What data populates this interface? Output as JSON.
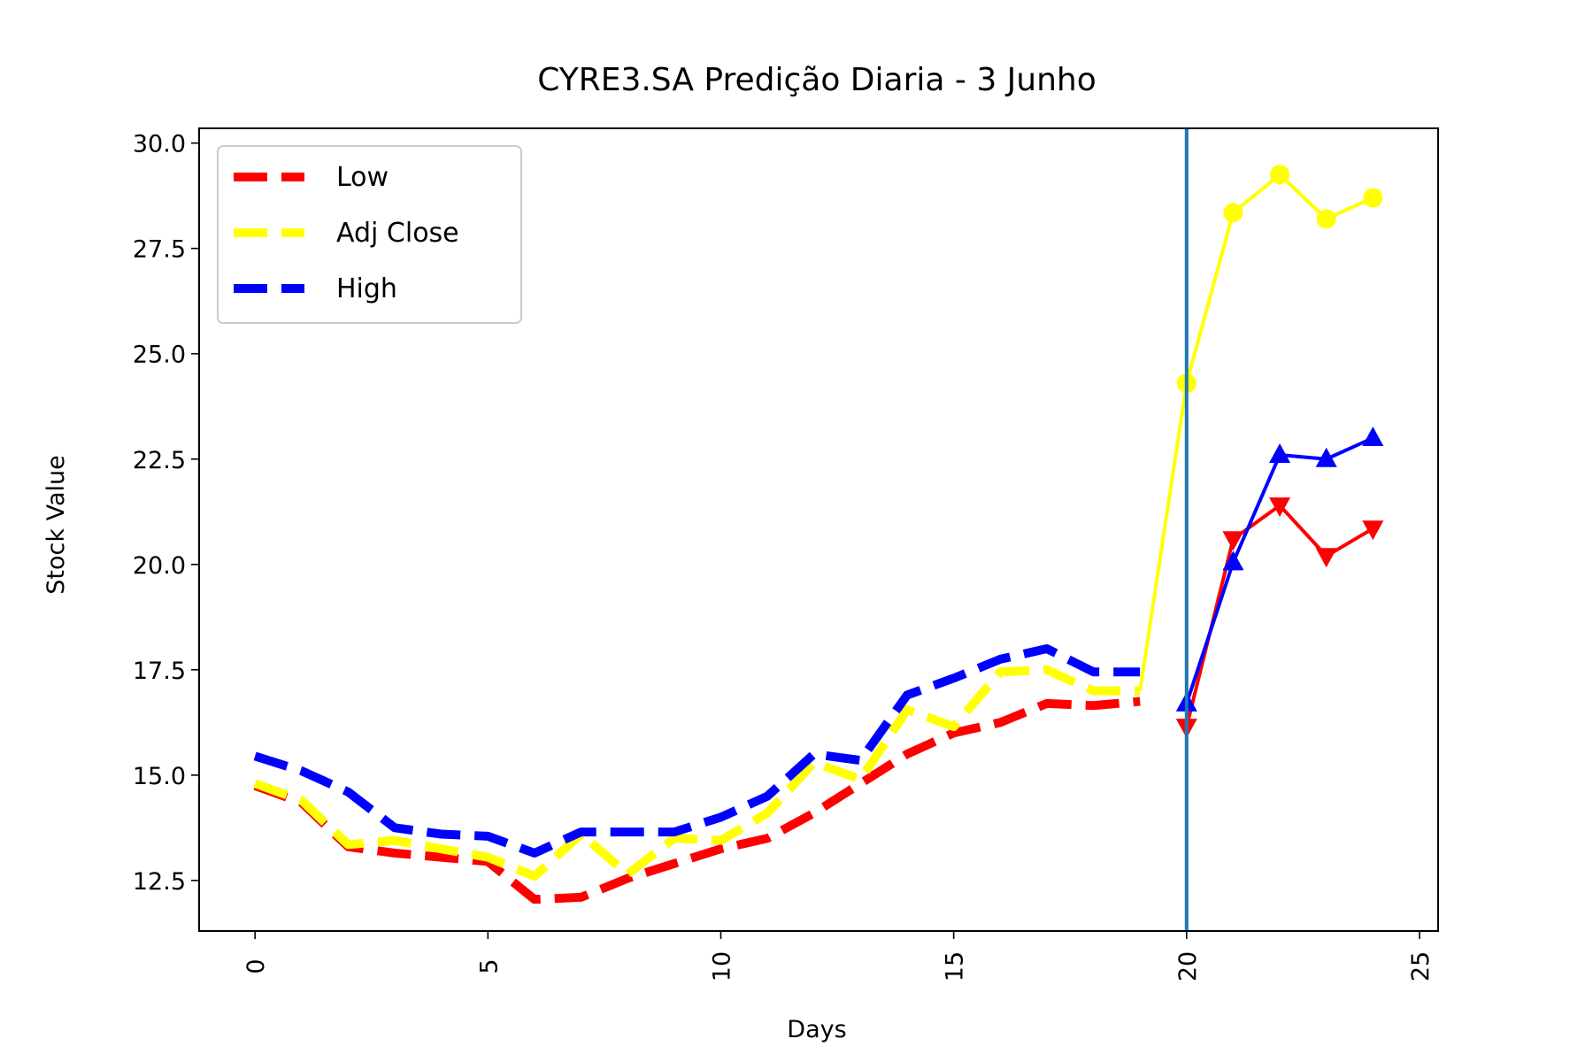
{
  "chart_data": {
    "type": "line",
    "title": "CYRE3.SA Predição Diaria - 3 Junho",
    "xlabel": "Days",
    "ylabel": "Stock Value",
    "xlim": [
      -1.2,
      25.4
    ],
    "ylim": [
      11.3,
      30.35
    ],
    "xticks": [
      0,
      5,
      10,
      15,
      20,
      25
    ],
    "xtick_labels": [
      "0",
      "5",
      "10",
      "15",
      "20",
      "25"
    ],
    "yticks": [
      12.5,
      15.0,
      17.5,
      20.0,
      22.5,
      25.0,
      27.5,
      30.0
    ],
    "ytick_labels": [
      "12.5",
      "15.0",
      "17.5",
      "20.0",
      "22.5",
      "25.0",
      "27.5",
      "30.0"
    ],
    "grid": false,
    "legend_position": "top-left",
    "vline": {
      "x": 20,
      "color": "#1f77b4"
    },
    "series": [
      {
        "name": "Low",
        "color": "#ff0000",
        "historical": {
          "x": [
            0,
            1,
            2,
            3,
            4,
            5,
            6,
            7,
            8,
            9,
            10,
            11,
            12,
            13,
            14,
            15,
            16,
            17,
            18,
            19
          ],
          "y": [
            14.75,
            14.35,
            13.3,
            13.15,
            13.05,
            12.95,
            12.05,
            12.1,
            12.55,
            12.9,
            13.25,
            13.5,
            14.1,
            14.8,
            15.5,
            16.0,
            16.25,
            16.7,
            16.65,
            16.75
          ]
        },
        "predicted": {
          "x": [
            20,
            21,
            22,
            23,
            24
          ],
          "y": [
            16.15,
            20.6,
            21.4,
            20.2,
            20.85
          ],
          "marker": "triangle-down"
        }
      },
      {
        "name": "Adj Close",
        "color": "#ffff00",
        "historical": {
          "x": [
            0,
            1,
            2,
            3,
            4,
            5,
            6,
            7,
            8,
            9,
            10,
            11,
            12,
            13,
            14,
            15,
            16,
            17,
            18,
            19
          ],
          "y": [
            14.8,
            14.4,
            13.35,
            13.45,
            13.25,
            13.05,
            12.6,
            13.6,
            12.65,
            13.5,
            13.45,
            14.1,
            15.3,
            14.9,
            16.55,
            16.15,
            17.45,
            17.5,
            17.0,
            17.0
          ]
        },
        "predicted": {
          "x": [
            19,
            20,
            21,
            22,
            23,
            24
          ],
          "y": [
            17.0,
            24.3,
            28.35,
            29.25,
            28.2,
            28.7
          ],
          "marker": "circle"
        }
      },
      {
        "name": "High",
        "color": "#0000ff",
        "historical": {
          "x": [
            0,
            1,
            2,
            3,
            4,
            5,
            6,
            7,
            8,
            9,
            10,
            11,
            12,
            13,
            14,
            15,
            16,
            17,
            18,
            19
          ],
          "y": [
            15.45,
            15.1,
            14.6,
            13.75,
            13.6,
            13.55,
            13.15,
            13.65,
            13.65,
            13.65,
            14.0,
            14.5,
            15.5,
            15.35,
            16.9,
            17.3,
            17.75,
            18.0,
            17.45,
            17.45
          ]
        },
        "predicted": {
          "x": [
            20,
            21,
            22,
            23,
            24
          ],
          "y": [
            16.7,
            20.05,
            22.6,
            22.5,
            23.0
          ],
          "marker": "triangle-up"
        }
      }
    ]
  }
}
